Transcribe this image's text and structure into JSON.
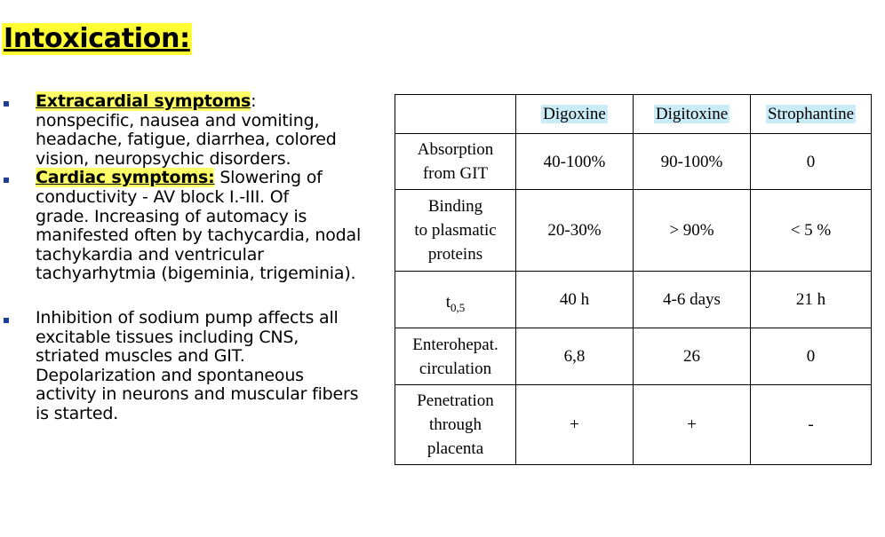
{
  "title": "Intoxication:",
  "bullets": [
    {
      "heading": "Extracardial symptoms",
      "heading_suffix": ":",
      "lines": [
        "nonspecific, nausea and vomiting,",
        "headache, fatigue, diarrhea, colored",
        "vision, neuropsychic disorders."
      ]
    },
    {
      "heading": "Cardiac symptoms:",
      "first_line_rest": " Slowering of",
      "lines": [
        "conductivity - AV block I.-III. Of",
        "grade. Increasing of automacy is",
        "manifested often by tachycardia, nodal",
        "tachykardia and ventricular",
        "tachyarhytmia (bigeminia, trigeminia)."
      ]
    },
    {
      "lines": [
        "Inhibition of sodium pump affects all",
        "excitable tissues including CNS,",
        "striated muscles and GIT.",
        "Depolarization and spontaneous",
        "activity in neurons and muscular fibers",
        "is started."
      ]
    }
  ],
  "table": {
    "columns": [
      "Digoxine",
      "Digitoxine",
      "Strophantine"
    ],
    "rows": [
      {
        "label_lines": [
          "Absorption",
          "from GIT"
        ],
        "values": [
          "40-100%",
          "90-100%",
          "0"
        ]
      },
      {
        "label_lines": [
          "Binding",
          "to plasmatic",
          "proteins"
        ],
        "values": [
          "20-30%",
          "> 90%",
          "< 5 %"
        ]
      },
      {
        "label_main": "t",
        "label_sub": "0,5",
        "values": [
          "40 h",
          "4-6 days",
          "21 h"
        ]
      },
      {
        "label_lines": [
          "Enterohepat.",
          "circulation"
        ],
        "values": [
          "6,8",
          "26",
          "0"
        ]
      },
      {
        "label_lines": [
          "Penetration",
          "through",
          "placenta"
        ],
        "values": [
          "+",
          "+",
          "-"
        ]
      }
    ]
  }
}
